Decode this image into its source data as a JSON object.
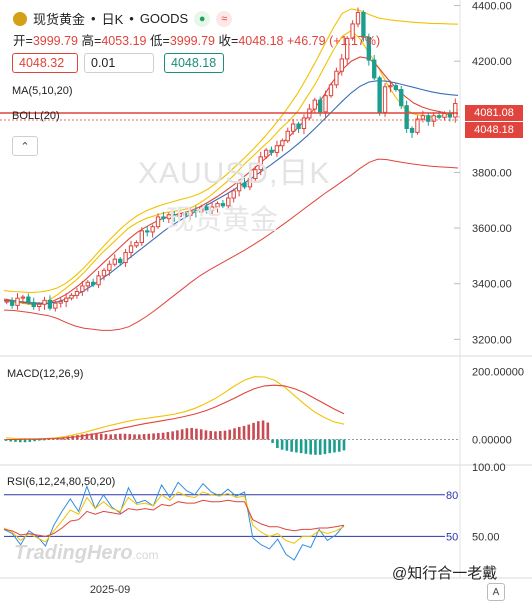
{
  "header": {
    "symbol": "现货黄金",
    "period": "日K",
    "source": "GOODS",
    "badge_dot": "●",
    "badge_wave": "≈",
    "separator": "•"
  },
  "ohlc": {
    "open_label": "开",
    "open": "3999.79",
    "high_label": "高",
    "high": "4053.19",
    "low_label": "低",
    "low": "3999.79",
    "close_label": "收",
    "close": "4048.18",
    "change": "+46.79",
    "change_pct": "(+1.17%)"
  },
  "order": {
    "sell_price": "4048.32",
    "quantity": "0.01",
    "buy_price": "4048.18"
  },
  "indicators": {
    "ma_label": "MA(5,10,20)",
    "boll_label": "BOLL(20)",
    "macd_label": "MACD(12,26,9)",
    "rsi_label": "RSI(6,12,24,80,50,20)",
    "collapse_icon": "⌃"
  },
  "watermark": {
    "line1": "XAUUSD,日K",
    "line2": "现货黄金"
  },
  "brand": {
    "name": "TradingHero",
    "suffix": ".com"
  },
  "credit": "@知行合一老戴",
  "font_button": "A",
  "price_tags": {
    "upper": "4081.08",
    "current": "4048.18"
  },
  "colors": {
    "up": "#e0443c",
    "down": "#1a9e8f",
    "ma5": "#f2c200",
    "ma10": "#e0443c",
    "ma20": "#3b6fb6",
    "boll": "#e0443c"
  },
  "chart_data": [
    {
      "type": "candlestick",
      "title": "现货黄金 日K",
      "xlabel": "",
      "ylabel": "",
      "x_tick_labels": [
        "2025-09"
      ],
      "y_ticks": [
        3200,
        3400,
        3600,
        3800,
        4000,
        4200,
        4400
      ],
      "y_tick_labels": [
        "3200.00",
        "3400.00",
        "3600.00",
        "3800.00",
        "4000.00",
        "4200.00",
        "4400.00"
      ],
      "ylim": [
        3140,
        4420
      ],
      "closes": [
        3338,
        3322,
        3348,
        3352,
        3332,
        3318,
        3326,
        3340,
        3312,
        3330,
        3336,
        3348,
        3358,
        3372,
        3392,
        3405,
        3396,
        3428,
        3448,
        3470,
        3488,
        3476,
        3512,
        3536,
        3548,
        3590,
        3586,
        3605,
        3640,
        3634,
        3648,
        3642,
        3652,
        3646,
        3662,
        3658,
        3676,
        3664,
        3676,
        3688,
        3680,
        3708,
        3734,
        3762,
        3748,
        3778,
        3810,
        3856,
        3880,
        3872,
        3896,
        3914,
        3948,
        3974,
        3958,
        3996,
        4028,
        4060,
        4018,
        4076,
        4115,
        4164,
        4208,
        4282,
        4334,
        4375,
        4286,
        4204,
        4140,
        4016,
        4108,
        4112,
        4098,
        4040,
        3958,
        3944,
        3992,
        4004,
        3984,
        4004,
        3998,
        4012,
        3999,
        4048
      ],
      "series": [
        {
          "name": "MA5",
          "values": [
            3340,
            3335,
            3330,
            3325,
            3328,
            3340,
            3360,
            3385,
            3410,
            3440,
            3475,
            3510,
            3540,
            3570,
            3600,
            3620,
            3635,
            3645,
            3655,
            3660,
            3665,
            3672,
            3690,
            3712,
            3738,
            3765,
            3795,
            3830,
            3860,
            3890,
            3920,
            3955,
            3985,
            4020,
            4070,
            4120,
            4180,
            4240,
            4290,
            4310,
            4280,
            4230,
            4180,
            4120,
            4070,
            4030,
            4010,
            4005,
            4000,
            4002,
            4010,
            4025
          ]
        },
        {
          "name": "MA10",
          "values": [
            3345,
            3340,
            3333,
            3328,
            3326,
            3330,
            3345,
            3362,
            3385,
            3410,
            3440,
            3470,
            3500,
            3530,
            3560,
            3585,
            3605,
            3622,
            3636,
            3646,
            3654,
            3662,
            3676,
            3694,
            3714,
            3736,
            3760,
            3786,
            3812,
            3840,
            3868,
            3898,
            3928,
            3960,
            3995,
            4035,
            4080,
            4130,
            4170,
            4200,
            4215,
            4210,
            4180,
            4140,
            4105,
            4075,
            4050,
            4035,
            4025,
            4018,
            4012,
            4010
          ]
        },
        {
          "name": "MA20",
          "values": [
            3340,
            3338,
            3335,
            3332,
            3330,
            3330,
            3335,
            3345,
            3358,
            3375,
            3395,
            3418,
            3440,
            3465,
            3490,
            3515,
            3540,
            3565,
            3590,
            3612,
            3632,
            3650,
            3668,
            3686,
            3704,
            3722,
            3742,
            3762,
            3784,
            3806,
            3828,
            3852,
            3876,
            3902,
            3930,
            3960,
            3992,
            4024,
            4056,
            4086,
            4110,
            4125,
            4130,
            4128,
            4122,
            4114,
            4106,
            4098,
            4090,
            4084,
            4080,
            4077
          ]
        },
        {
          "name": "BOLL-UP",
          "values": [
            3375,
            3372,
            3370,
            3368,
            3370,
            3375,
            3385,
            3402,
            3428,
            3458,
            3492,
            3528,
            3562,
            3594,
            3622,
            3645,
            3662,
            3675,
            3686,
            3695,
            3704,
            3712,
            3724,
            3742,
            3765,
            3792,
            3822,
            3852,
            3884,
            3918,
            3955,
            3995,
            4038,
            4085,
            4140,
            4198,
            4260,
            4320,
            4372,
            4388,
            4382,
            4368,
            4356,
            4350,
            4346,
            4343,
            4340,
            4338,
            4336,
            4335,
            4334,
            4333
          ]
        },
        {
          "name": "BOLL-MID",
          "values": [
            3340,
            3338,
            3335,
            3332,
            3330,
            3330,
            3335,
            3345,
            3358,
            3375,
            3395,
            3418,
            3440,
            3465,
            3490,
            3515,
            3540,
            3565,
            3590,
            3612,
            3632,
            3650,
            3668,
            3686,
            3704,
            3722,
            3742,
            3762,
            3784,
            3806,
            3828,
            3852,
            3876,
            3902,
            3930,
            3960,
            3992,
            4024,
            4056,
            4086,
            4110,
            4125,
            4130,
            4128,
            4122,
            4114,
            4106,
            4098,
            4090,
            4084,
            4080,
            4077
          ]
        },
        {
          "name": "BOLL-DN",
          "values": [
            3305,
            3304,
            3300,
            3296,
            3290,
            3285,
            3275,
            3260,
            3248,
            3240,
            3236,
            3232,
            3232,
            3236,
            3245,
            3262,
            3282,
            3305,
            3330,
            3355,
            3380,
            3405,
            3428,
            3448,
            3466,
            3484,
            3502,
            3520,
            3540,
            3560,
            3582,
            3605,
            3628,
            3652,
            3676,
            3700,
            3724,
            3745,
            3768,
            3790,
            3815,
            3836,
            3848,
            3846,
            3840,
            3835,
            3830,
            3826,
            3822,
            3820,
            3818,
            3816
          ]
        }
      ]
    },
    {
      "type": "bar",
      "title": "MACD(12,26,9)",
      "y_ticks": [
        0,
        200
      ],
      "y_tick_labels": [
        "0.00000",
        "200.00000"
      ],
      "ylim": [
        -75,
        240
      ],
      "values": [
        -4,
        -6,
        -7,
        -8,
        -8,
        -7,
        -5,
        -3,
        -1,
        1,
        3,
        5,
        7,
        9,
        11,
        13,
        15,
        17,
        18,
        18,
        17,
        16,
        15,
        16,
        17,
        17,
        16,
        15,
        15,
        16,
        17,
        18,
        19,
        20,
        22,
        24,
        27,
        30,
        33,
        34,
        32,
        30,
        27,
        25,
        24,
        25,
        26,
        29,
        33,
        37,
        40,
        44,
        49,
        54,
        56,
        50,
        -10,
        -25,
        -30,
        -33,
        -36,
        -38,
        -40,
        -42,
        -44,
        -45,
        -45,
        -43,
        -40,
        -38,
        -36,
        -32
      ],
      "series": [
        {
          "name": "DIF",
          "values": [
            5,
            3,
            2,
            2,
            3,
            5,
            9,
            15,
            22,
            30,
            38,
            45,
            52,
            58,
            62,
            66,
            70,
            75,
            82,
            92,
            105,
            120,
            138,
            158,
            175,
            185,
            184,
            175,
            155,
            130,
            105,
            82,
            65,
            52,
            45
          ]
        },
        {
          "name": "DEA",
          "values": [
            0,
            0,
            1,
            1,
            2,
            3,
            5,
            8,
            12,
            17,
            23,
            29,
            35,
            41,
            47,
            52,
            57,
            62,
            68,
            75,
            84,
            95,
            108,
            122,
            137,
            150,
            158,
            160,
            158,
            150,
            138,
            122,
            106,
            90,
            76
          ]
        }
      ]
    },
    {
      "type": "line",
      "title": "RSI(6,12,24,80,50,20)",
      "y_ticks": [
        50,
        100
      ],
      "y_tick_labels": [
        "50.00",
        "100.00"
      ],
      "reference_lines": [
        80,
        50
      ],
      "ylim": [
        20,
        100
      ],
      "series": [
        {
          "name": "RSI6",
          "values": [
            55,
            52,
            44,
            54,
            50,
            43,
            58,
            68,
            77,
            68,
            86,
            70,
            80,
            71,
            67,
            85,
            74,
            76,
            72,
            87,
            78,
            89,
            83,
            80,
            88,
            82,
            79,
            84,
            79,
            82,
            49,
            44,
            41,
            48,
            37,
            33,
            44,
            42,
            55,
            47,
            51,
            58
          ]
        },
        {
          "name": "RSI12",
          "values": [
            56,
            53,
            47,
            52,
            49,
            46,
            54,
            61,
            69,
            66,
            78,
            70,
            75,
            70,
            68,
            78,
            73,
            74,
            72,
            80,
            76,
            82,
            79,
            78,
            82,
            80,
            79,
            81,
            78,
            79,
            58,
            53,
            50,
            52,
            47,
            45,
            50,
            50,
            54,
            52,
            54,
            57
          ]
        },
        {
          "name": "RSI24",
          "values": [
            55,
            54,
            51,
            52,
            51,
            50,
            52,
            56,
            61,
            62,
            68,
            66,
            68,
            67,
            66,
            70,
            69,
            70,
            69,
            73,
            72,
            75,
            74,
            74,
            76,
            75,
            75,
            76,
            75,
            75,
            62,
            59,
            57,
            57,
            55,
            54,
            55,
            55,
            56,
            56,
            57,
            58
          ]
        }
      ]
    }
  ]
}
